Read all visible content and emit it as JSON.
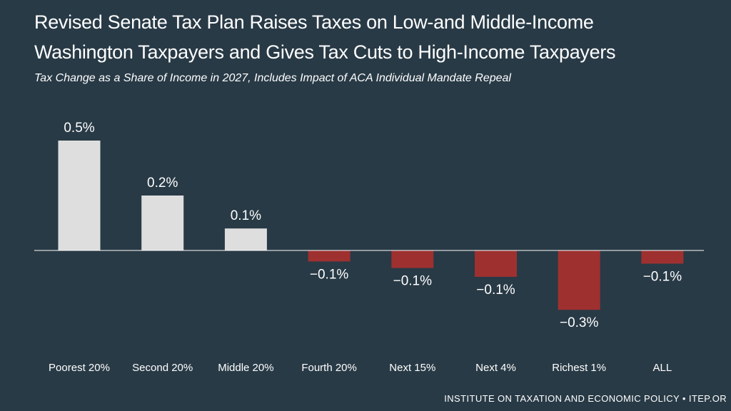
{
  "header": {
    "title_line1": "Revised Senate Tax Plan Raises Taxes on Low-and Middle-Income",
    "title_line2": "Washington Taxpayers and Gives Tax Cuts to High-Income Taxpayers",
    "subtitle": "Tax Change as a Share of Income in 2027, Includes Impact of ACA Individual Mandate Repeal"
  },
  "footer": {
    "source": "INSTITUTE ON TAXATION AND ECONOMIC POLICY • ITEP.OR"
  },
  "colors": {
    "background": "#283a46",
    "positive_bar": "#dedede",
    "negative_bar": "#9e3030",
    "axis": "#ffffff",
    "text": "#ffffff"
  },
  "chart_data": {
    "type": "bar",
    "title": "Revised Senate Tax Plan Raises Taxes on Low-and Middle-Income Washington Taxpayers and Gives Tax Cuts to High-Income Taxpayers",
    "subtitle": "Tax Change as a Share of Income in 2027, Includes Impact of ACA Individual Mandate Repeal",
    "xlabel": "",
    "ylabel": "",
    "categories": [
      "Poorest 20%",
      "Second 20%",
      "Middle 20%",
      "Fourth 20%",
      "Next 15%",
      "Next 4%",
      "Richest 1%",
      "ALL"
    ],
    "values": [
      0.5,
      0.25,
      0.1,
      -0.05,
      -0.08,
      -0.12,
      -0.27,
      -0.06
    ],
    "labels": [
      "0.5%",
      "0.2%",
      "0.1%",
      "−0.1%",
      "−0.1%",
      "−0.1%",
      "−0.3%",
      "−0.1%"
    ],
    "ylim": [
      -0.3,
      0.55
    ],
    "grid": false,
    "legend": "none"
  }
}
